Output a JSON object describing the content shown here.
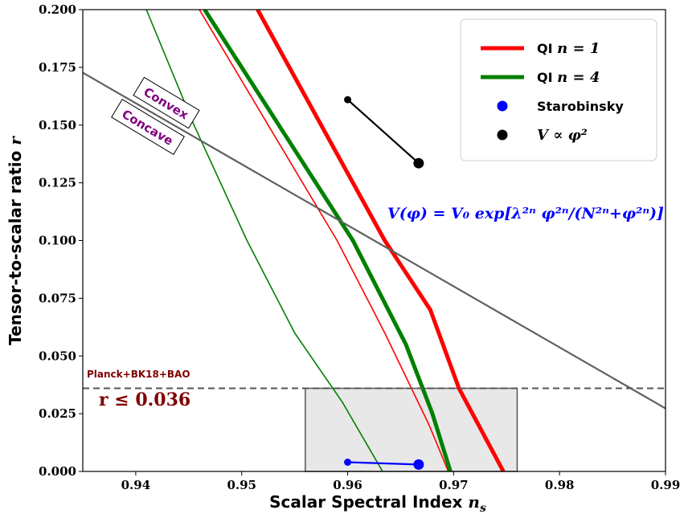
{
  "chart_data": {
    "type": "line",
    "xlabel": "Scalar Spectral Index",
    "xlabel_math": "n",
    "xlabel_sub": "s",
    "ylabel": "Tensor-to-scalar ratio",
    "ylabel_math": "r",
    "xlim": [
      0.935,
      0.99
    ],
    "ylim": [
      0.0,
      0.2
    ],
    "x_ticks": [
      0.94,
      0.95,
      0.96,
      0.97,
      0.98,
      0.99
    ],
    "y_ticks": [
      0.0,
      0.025,
      0.05,
      0.075,
      0.1,
      0.125,
      0.15,
      0.175,
      0.2
    ],
    "x_tick_labels": [
      "0.94",
      "0.95",
      "0.96",
      "0.97",
      "0.98",
      "0.99"
    ],
    "y_tick_labels": [
      "0.000",
      "0.025",
      "0.050",
      "0.075",
      "0.100",
      "0.125",
      "0.150",
      "0.175",
      "0.200"
    ],
    "grid": false,
    "legend_position": "top-right",
    "legend": [
      {
        "label": "QI",
        "math": "n = 1",
        "kind": "line",
        "color": "#ff0000"
      },
      {
        "label": "QI",
        "math": "n = 4",
        "kind": "line",
        "color": "#008000"
      },
      {
        "label": "Starobinsky",
        "math": "",
        "kind": "marker",
        "color": "#0000ff"
      },
      {
        "label": "",
        "math": "V ∝ φ²",
        "kind": "marker",
        "color": "#000000"
      }
    ],
    "series": [
      {
        "color": "#ff0000",
        "width": "thick",
        "points": [
          [
            0.9515,
            0.2
          ],
          [
            0.9575,
            0.15
          ],
          [
            0.9635,
            0.1
          ],
          [
            0.9678,
            0.07
          ],
          [
            0.9705,
            0.036
          ],
          [
            0.9747,
            0.0
          ]
        ]
      },
      {
        "color": "#ff0000",
        "width": "thin",
        "points": [
          [
            0.946,
            0.2
          ],
          [
            0.9525,
            0.15
          ],
          [
            0.959,
            0.1
          ],
          [
            0.9635,
            0.06
          ],
          [
            0.9677,
            0.02
          ],
          [
            0.9695,
            0.0
          ]
        ]
      },
      {
        "color": "#008000",
        "width": "thick",
        "points": [
          [
            0.9465,
            0.2
          ],
          [
            0.9535,
            0.15
          ],
          [
            0.9605,
            0.1
          ],
          [
            0.9655,
            0.055
          ],
          [
            0.968,
            0.025
          ],
          [
            0.9697,
            0.0
          ]
        ]
      },
      {
        "color": "#008000",
        "width": "thin",
        "points": [
          [
            0.941,
            0.2
          ],
          [
            0.9455,
            0.15
          ],
          [
            0.9505,
            0.1
          ],
          [
            0.955,
            0.06
          ],
          [
            0.9595,
            0.03
          ],
          [
            0.9633,
            0.0
          ]
        ]
      },
      {
        "color": "#606060",
        "width": "medium",
        "points": [
          [
            0.935,
            0.1727
          ],
          [
            0.99,
            0.0273
          ]
        ]
      },
      {
        "color": "#0000ff",
        "width": "medium",
        "points": [
          [
            0.96,
            0.004
          ],
          [
            0.9667,
            0.003
          ]
        ],
        "markers": [
          [
            0.96,
            0.004,
            "small"
          ],
          [
            0.9667,
            0.003,
            "large"
          ]
        ]
      },
      {
        "color": "#000000",
        "width": "medium",
        "points": [
          [
            0.96,
            0.161
          ],
          [
            0.9667,
            0.1335
          ]
        ],
        "markers": [
          [
            0.96,
            0.161,
            "small"
          ],
          [
            0.9667,
            0.1335,
            "large"
          ]
        ]
      }
    ],
    "constraint": {
      "r_max": 0.036,
      "label": "Planck+BK18+BAO",
      "inequality": "r ≤ 0.036"
    },
    "shaded_region": {
      "x": [
        0.956,
        0.976
      ],
      "y": [
        0.0,
        0.036
      ],
      "color": "#e8e8e8"
    },
    "annotations": {
      "convex": {
        "text": "Convex",
        "color": "#800080"
      },
      "concave": {
        "text": "Concave",
        "color": "#800080"
      },
      "potential_formula": {
        "text": "V(φ) = V₀ exp[λ²ⁿ φ²ⁿ/(N²ⁿ+φ²ⁿ)]",
        "color": "#0000ff"
      }
    }
  }
}
